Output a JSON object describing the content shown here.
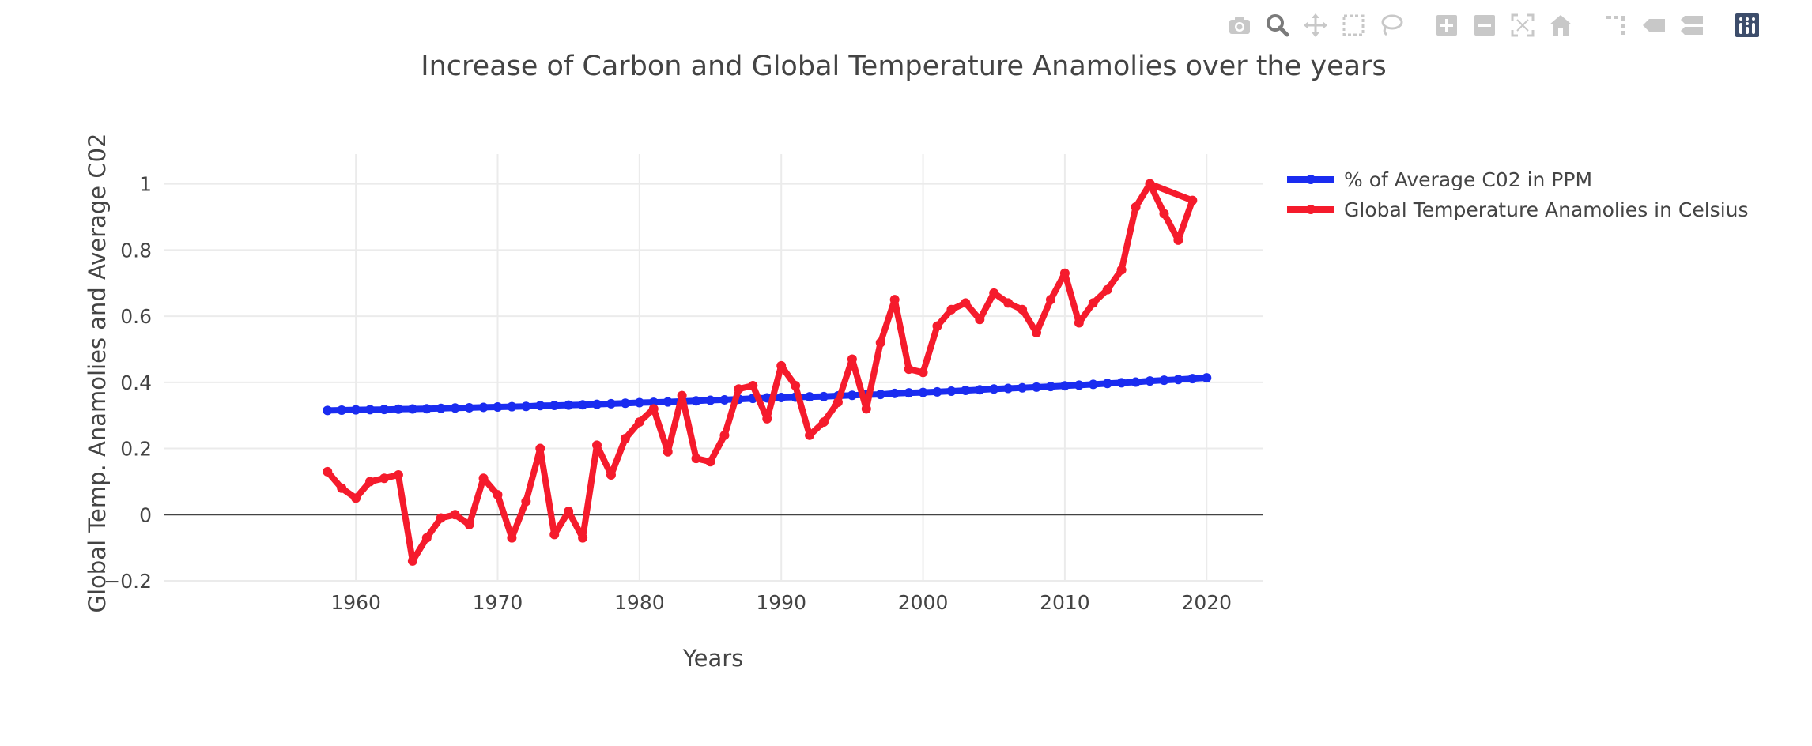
{
  "toolbar": {
    "buttons": [
      {
        "icon": "camera-icon",
        "label": "Download plot as a png"
      },
      {
        "icon": "zoom-icon",
        "label": "Zoom",
        "active": true
      },
      {
        "icon": "pan-icon",
        "label": "Pan"
      },
      {
        "icon": "box-select-icon",
        "label": "Box Select"
      },
      {
        "icon": "lasso-select-icon",
        "label": "Lasso Select"
      },
      {
        "icon": "zoom-in-icon",
        "label": "Zoom in"
      },
      {
        "icon": "zoom-out-icon",
        "label": "Zoom out"
      },
      {
        "icon": "autoscale-icon",
        "label": "Autoscale"
      },
      {
        "icon": "reset-axes-icon",
        "label": "Reset axes"
      },
      {
        "icon": "spike-lines-icon",
        "label": "Toggle Spike Lines"
      },
      {
        "icon": "hover-closest-icon",
        "label": "Show closest data on hover"
      },
      {
        "icon": "hover-compare-icon",
        "label": "Compare data on hover"
      },
      {
        "icon": "plotly-logo-icon",
        "label": "Produced with Plotly"
      }
    ],
    "icon_color": "#c8c8c8",
    "active_color": "#7a7a7a",
    "logo_color": "#3d4d6b"
  },
  "chart_data": {
    "type": "line",
    "title": "Increase of Carbon and Global Temperature Anamolies over the years",
    "xlabel": "Years",
    "ylabel": "Global Temp. Anamolies and Average C02",
    "xlim": [
      1946.5,
      2024
    ],
    "ylim": [
      -0.2,
      1.09
    ],
    "xticks": [
      1960,
      1970,
      1980,
      1990,
      2000,
      2010,
      2020
    ],
    "yticks": [
      -0.2,
      0,
      0.2,
      0.4,
      0.6,
      0.8,
      1
    ],
    "ytick_labels": [
      "−0.2",
      "0",
      "0.2",
      "0.4",
      "0.6",
      "0.8",
      "1"
    ],
    "grid": true,
    "zero_line": true,
    "legend_position": "top-right, outside plot",
    "series": [
      {
        "name": "% of Average C02 in PPM",
        "color": "#1a2cf0",
        "x": [
          1958,
          1959,
          1960,
          1961,
          1962,
          1963,
          1964,
          1965,
          1966,
          1967,
          1968,
          1969,
          1970,
          1971,
          1972,
          1973,
          1974,
          1975,
          1976,
          1977,
          1978,
          1979,
          1980,
          1981,
          1982,
          1983,
          1984,
          1985,
          1986,
          1987,
          1988,
          1989,
          1990,
          1991,
          1992,
          1993,
          1994,
          1995,
          1996,
          1997,
          1998,
          1999,
          2000,
          2001,
          2002,
          2003,
          2004,
          2005,
          2006,
          2007,
          2008,
          2009,
          2010,
          2011,
          2012,
          2013,
          2014,
          2015,
          2016,
          2017,
          2018,
          2019,
          2020
        ],
        "y": [
          0.315,
          0.316,
          0.317,
          0.3175,
          0.318,
          0.319,
          0.3195,
          0.3203,
          0.3213,
          0.3225,
          0.3233,
          0.3245,
          0.3256,
          0.3264,
          0.3274,
          0.3297,
          0.3302,
          0.3312,
          0.3322,
          0.3337,
          0.3353,
          0.3369,
          0.3386,
          0.3397,
          0.3409,
          0.3425,
          0.3442,
          0.3459,
          0.3472,
          0.3491,
          0.3514,
          0.3529,
          0.3542,
          0.3553,
          0.3563,
          0.357,
          0.3589,
          0.3609,
          0.3627,
          0.3636,
          0.3666,
          0.3683,
          0.3696,
          0.3711,
          0.3734,
          0.3756,
          0.3774,
          0.3798,
          0.3818,
          0.3836,
          0.3856,
          0.3874,
          0.3896,
          0.3916,
          0.3938,
          0.3965,
          0.3986,
          0.4008,
          0.4042,
          0.4066,
          0.4085,
          0.4113,
          0.4137
        ]
      },
      {
        "name": "Global Temperature Anamolies in Celsius",
        "color": "#f51b2c",
        "x": [
          1958,
          1959,
          1960,
          1961,
          1962,
          1963,
          1964,
          1965,
          1966,
          1967,
          1968,
          1969,
          1970,
          1971,
          1972,
          1973,
          1974,
          1975,
          1976,
          1977,
          1978,
          1979,
          1980,
          1981,
          1982,
          1983,
          1984,
          1985,
          1986,
          1987,
          1988,
          1989,
          1990,
          1991,
          1992,
          1993,
          1994,
          1995,
          1996,
          1997,
          1998,
          1999,
          2000,
          2001,
          2002,
          2003,
          2004,
          2005,
          2006,
          2007,
          2008,
          2009,
          2010,
          2011,
          2012,
          2013,
          2014,
          2015,
          2016,
          2017,
          2018,
          2019,
          2016
        ],
        "y": [
          0.13,
          0.08,
          0.05,
          0.1,
          0.11,
          0.12,
          -0.14,
          -0.07,
          -0.01,
          0.0,
          -0.03,
          0.11,
          0.06,
          -0.07,
          0.04,
          0.2,
          -0.06,
          0.01,
          -0.07,
          0.21,
          0.12,
          0.23,
          0.28,
          0.32,
          0.19,
          0.36,
          0.17,
          0.16,
          0.24,
          0.38,
          0.39,
          0.29,
          0.45,
          0.39,
          0.24,
          0.28,
          0.34,
          0.47,
          0.32,
          0.52,
          0.65,
          0.44,
          0.43,
          0.57,
          0.62,
          0.64,
          0.59,
          0.67,
          0.64,
          0.62,
          0.55,
          0.65,
          0.73,
          0.58,
          0.64,
          0.68,
          0.74,
          0.93,
          1.0,
          0.91,
          0.83,
          0.95,
          1.0
        ]
      }
    ]
  }
}
